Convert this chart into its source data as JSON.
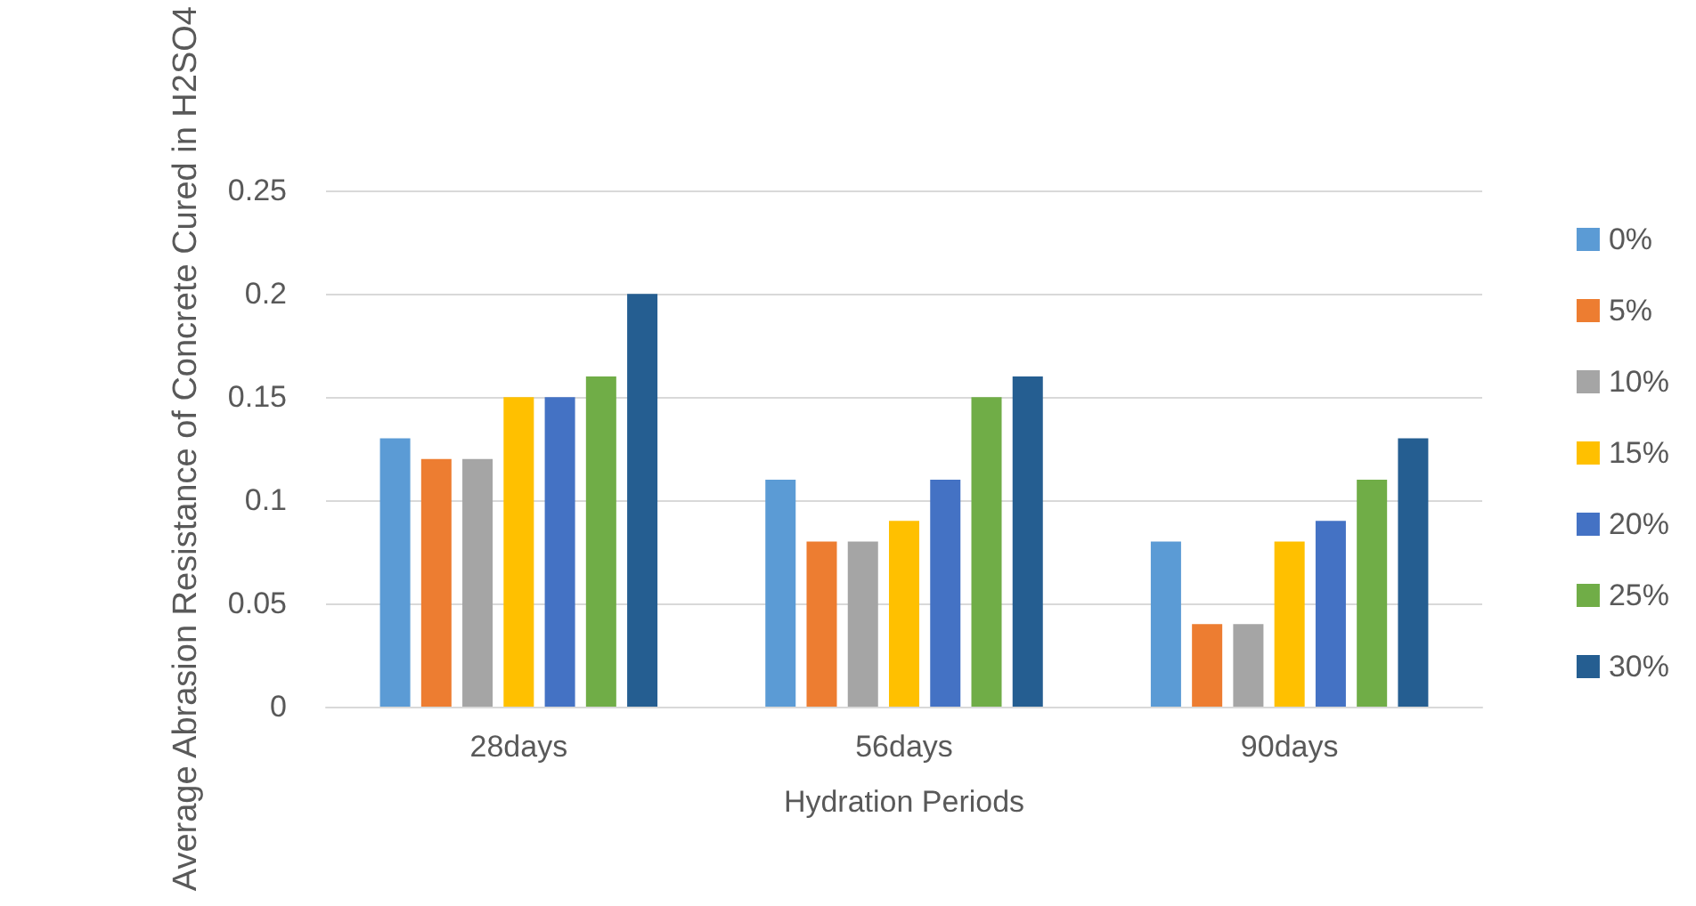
{
  "chart_data": {
    "type": "bar",
    "xlabel": "Hydration Periods",
    "ylabel": "Average Abrasion Resistance of Concrete Cured in H2SO4",
    "categories": [
      "28days",
      "56days",
      "90days"
    ],
    "series": [
      {
        "name": "0%",
        "color": "#5b9bd5",
        "values": [
          0.13,
          0.11,
          0.08
        ]
      },
      {
        "name": "5%",
        "color": "#ed7d31",
        "values": [
          0.12,
          0.08,
          0.04
        ]
      },
      {
        "name": "10%",
        "color": "#a5a5a5",
        "values": [
          0.12,
          0.08,
          0.04
        ]
      },
      {
        "name": "15%",
        "color": "#ffc000",
        "values": [
          0.15,
          0.09,
          0.08
        ]
      },
      {
        "name": "20%",
        "color": "#4472c4",
        "values": [
          0.15,
          0.11,
          0.09
        ]
      },
      {
        "name": "25%",
        "color": "#70ad47",
        "values": [
          0.16,
          0.15,
          0.11
        ]
      },
      {
        "name": "30%",
        "color": "#255e91",
        "values": [
          0.2,
          0.16,
          0.13
        ]
      }
    ],
    "ylim": [
      0,
      0.25
    ],
    "yticks": [
      0,
      0.05,
      0.1,
      0.15,
      0.2,
      0.25
    ],
    "grid": "y",
    "legend": "right"
  }
}
